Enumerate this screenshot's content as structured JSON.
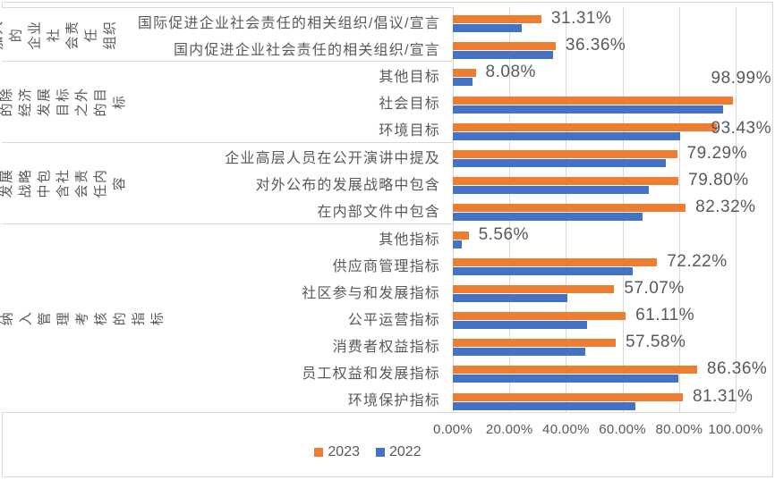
{
  "colors": {
    "series_2023": "#ED7D31",
    "series_2022": "#4472C4",
    "gridline": "#D9D9D9",
    "border": "#D9D9D9",
    "text": "#595959",
    "background": "#FFFFFF"
  },
  "chart_data": {
    "type": "bar",
    "orientation": "horizontal",
    "grid": true,
    "categories": [
      "国际促进企业社会责任的相关组织/倡议/宣言",
      "国内促进企业社会责任的相关组织/宣言",
      "其他目标",
      "社会目标",
      "环境目标",
      "企业高层人员在公开演讲中提及",
      "对外公布的发展战略中包含",
      "在内部文件中包含",
      "其他指标",
      "供应商管理指标",
      "社区参与和发展指标",
      "公平运营指标",
      "消费者权益指标",
      "员工权益和发展指标",
      "环境保护指标"
    ],
    "category_groups": [
      {
        "label": "加入的企业社会责任组织",
        "label_lines": "加入的\n企业社\n会责任\n组织",
        "count": 2
      },
      {
        "label": "制定的除经济发展目标之外的目标",
        "label_lines": "制定的除\n经济发展\n目标之外\n的目标",
        "count": 3
      },
      {
        "label": "公司发展战略中包含社会责任内容",
        "label_lines": "公司发展\n战略中包\n含社会责\n任内容",
        "count": 3
      },
      {
        "label": "纳入管理考核的指标",
        "label_lines": "纳入管理考核的指标",
        "count": 7
      }
    ],
    "series": [
      {
        "name": "2023",
        "color": "#ED7D31",
        "values": [
          31.31,
          36.36,
          8.08,
          98.99,
          93.43,
          79.29,
          79.8,
          82.32,
          5.56,
          72.22,
          57.07,
          61.11,
          57.58,
          86.36,
          81.31
        ]
      },
      {
        "name": "2022",
        "color": "#4472C4",
        "values": [
          24.24,
          35.35,
          7.07,
          95.45,
          80.3,
          75.25,
          69.19,
          67.17,
          3.03,
          63.64,
          40.4,
          47.47,
          46.97,
          79.8,
          64.65
        ]
      }
    ],
    "data_labels": {
      "series": "2023",
      "values": [
        "31.31%",
        "36.36%",
        "8.08%",
        "98.99%",
        "93.43%",
        "79.29%",
        "79.80%",
        "82.32%",
        "5.56%",
        "72.22%",
        "57.07%",
        "61.11%",
        "57.58%",
        "86.36%",
        "81.31%"
      ],
      "placement": [
        "normal",
        "normal",
        "normal",
        "edge_raised",
        "edge",
        "normal",
        "normal",
        "normal",
        "normal",
        "normal",
        "normal",
        "normal",
        "normal",
        "normal",
        "normal"
      ]
    },
    "value_axis": {
      "ticks": [
        "0.00%",
        "20.00%",
        "40.00%",
        "60.00%",
        "80.00%",
        "100.00%"
      ],
      "range": [
        0,
        100
      ]
    },
    "legend": {
      "position": "bottom",
      "entries": [
        "2023",
        "2022"
      ]
    }
  }
}
